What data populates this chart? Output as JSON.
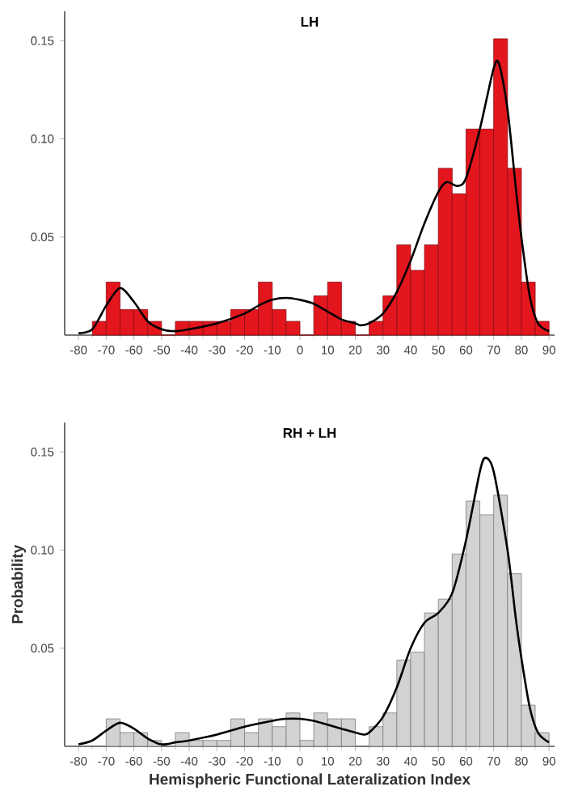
{
  "chart_data": [
    {
      "type": "histogram",
      "title": "LH",
      "xlim": [
        -85,
        92
      ],
      "ylim": [
        0,
        0.165
      ],
      "xticks": [
        -80,
        -70,
        -60,
        -50,
        -40,
        -30,
        -20,
        -10,
        0,
        10,
        20,
        30,
        40,
        50,
        60,
        70,
        80,
        90
      ],
      "yticks": [
        {
          "value": 0.05,
          "label": "0.05"
        },
        {
          "value": 0.1,
          "label": "0.10"
        },
        {
          "value": 0.15,
          "label": "0.15"
        }
      ],
      "series": [
        {
          "type": "histogram",
          "color": "#e3161e",
          "bins": [
            -75,
            -70,
            -65,
            -60,
            -55,
            -50,
            -45,
            -40,
            -35,
            -30,
            -25,
            -20,
            -15,
            -10,
            -5,
            0,
            5,
            10,
            15,
            20,
            25,
            30,
            35,
            40,
            45,
            50,
            55,
            60,
            65,
            70,
            75,
            80,
            85,
            90
          ],
          "values": [
            0.007,
            0.027,
            0.013,
            0.013,
            0.007,
            0,
            0.007,
            0.007,
            0.007,
            0.007,
            0.013,
            0.013,
            0.027,
            0.013,
            0.007,
            0,
            0.02,
            0.027,
            0.007,
            0,
            0.007,
            0.02,
            0.046,
            0.033,
            0.046,
            0.085,
            0.072,
            0.105,
            0.105,
            0.151,
            0.085,
            0.027,
            0.007
          ]
        },
        {
          "type": "line",
          "color": "#000000",
          "x": [
            -80,
            -75,
            -70,
            -65,
            -60,
            -55,
            -50,
            -45,
            -40,
            -30,
            -20,
            -15,
            -10,
            -5,
            0,
            5,
            10,
            15,
            20,
            22,
            25,
            30,
            35,
            40,
            45,
            50,
            53,
            57,
            60,
            65,
            70,
            72,
            75,
            78,
            80,
            83,
            86,
            90
          ],
          "values": [
            0.001,
            0.003,
            0.015,
            0.024,
            0.017,
            0.007,
            0.003,
            0.002,
            0.003,
            0.006,
            0.011,
            0.015,
            0.018,
            0.019,
            0.018,
            0.016,
            0.012,
            0.008,
            0.006,
            0.005,
            0.006,
            0.011,
            0.022,
            0.038,
            0.057,
            0.073,
            0.078,
            0.076,
            0.08,
            0.105,
            0.136,
            0.138,
            0.115,
            0.075,
            0.05,
            0.02,
            0.006,
            0.002
          ]
        }
      ]
    },
    {
      "type": "histogram",
      "title": "RH + LH",
      "xlabel": "Hemispheric Functional Lateralization Index",
      "ylabel": "Probability",
      "xlim": [
        -85,
        92
      ],
      "ylim": [
        0,
        0.165
      ],
      "xticks": [
        -80,
        -70,
        -60,
        -50,
        -40,
        -30,
        -20,
        -10,
        0,
        10,
        20,
        30,
        40,
        50,
        60,
        70,
        80,
        90
      ],
      "yticks": [
        {
          "value": 0.05,
          "label": "0.05"
        },
        {
          "value": 0.1,
          "label": "0.10"
        },
        {
          "value": 0.15,
          "label": "0.15"
        }
      ],
      "series": [
        {
          "type": "histogram",
          "color": "#d2d2d2",
          "bins": [
            -70,
            -65,
            -60,
            -55,
            -50,
            -45,
            -40,
            -35,
            -30,
            -25,
            -20,
            -15,
            -10,
            -5,
            0,
            5,
            10,
            15,
            20,
            25,
            30,
            35,
            40,
            45,
            50,
            55,
            60,
            65,
            70,
            75,
            80,
            85,
            90
          ],
          "values": [
            0.014,
            0.007,
            0.007,
            0.003,
            0,
            0.007,
            0.003,
            0.003,
            0.003,
            0.014,
            0.007,
            0.014,
            0.01,
            0.017,
            0.003,
            0.017,
            0.014,
            0.014,
            0,
            0.01,
            0.017,
            0.044,
            0.048,
            0.068,
            0.075,
            0.098,
            0.125,
            0.118,
            0.128,
            0.088,
            0.021,
            0.007
          ]
        },
        {
          "type": "line",
          "color": "#000000",
          "x": [
            -80,
            -75,
            -70,
            -65,
            -60,
            -55,
            -50,
            -45,
            -40,
            -30,
            -20,
            -10,
            -5,
            0,
            5,
            10,
            15,
            20,
            23,
            25,
            30,
            35,
            40,
            45,
            50,
            55,
            60,
            65,
            67,
            70,
            75,
            78,
            80,
            83,
            86,
            90
          ],
          "values": [
            0.001,
            0.003,
            0.008,
            0.012,
            0.009,
            0.004,
            0.001,
            0.002,
            0.003,
            0.006,
            0.01,
            0.013,
            0.014,
            0.014,
            0.013,
            0.011,
            0.009,
            0.007,
            0.006,
            0.007,
            0.015,
            0.03,
            0.05,
            0.063,
            0.068,
            0.078,
            0.105,
            0.14,
            0.147,
            0.14,
            0.1,
            0.065,
            0.045,
            0.02,
            0.007,
            0.002
          ]
        }
      ]
    }
  ]
}
